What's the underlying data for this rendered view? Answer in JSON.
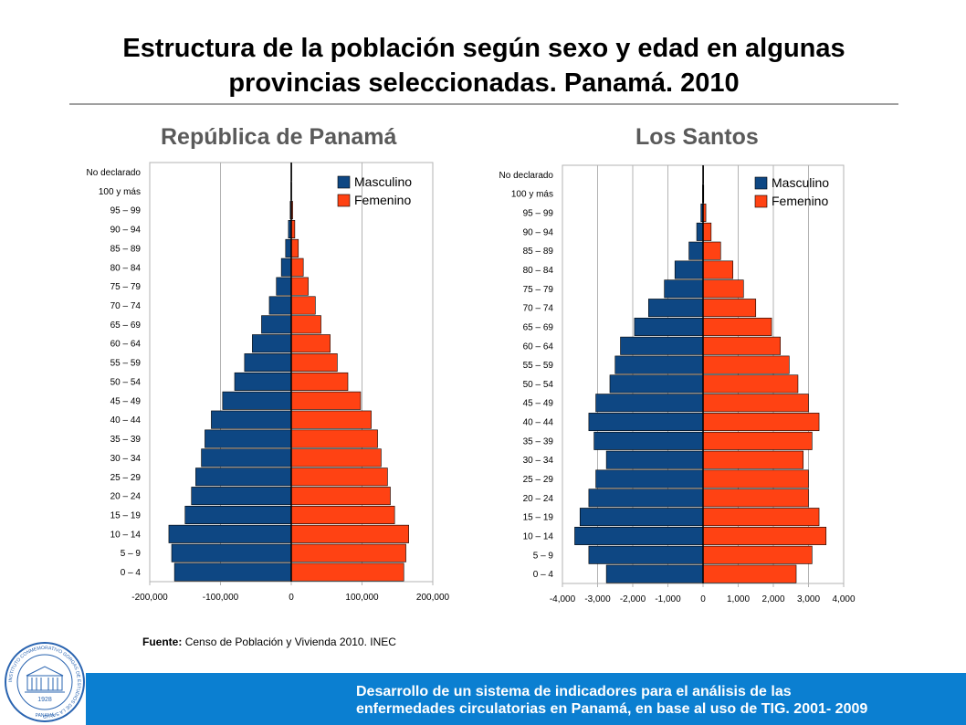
{
  "slide": {
    "title_line1": "Estructura de la población según sexo y edad en algunas",
    "title_line2": "provincias seleccionadas. Panamá. 2010",
    "source_label": "Fuente:",
    "source_text": "Censo de Población y Vivienda  2010. INEC",
    "footer_line1": "Desarrollo de un sistema de indicadores para el análisis de las",
    "footer_line2": "enfermedades circulatorias en Panamá, en base al uso de TIG. 2001- 2009",
    "logo_year": "1928",
    "logo_place": "PANAMÁ",
    "logo_ring_text": "INSTITUTO CONMEMORATIVO GORGAS DE ESTUDIOS DE LA SALUD"
  },
  "colors": {
    "male": "#0e4783",
    "female": "#ff4213",
    "footer": "#0b7fd1",
    "grid": "#b3b3b3"
  },
  "chart_data": [
    {
      "type": "bar",
      "orientation": "horizontal-population-pyramid",
      "title": "República de Panamá",
      "categories": [
        "0 – 4",
        "5 – 9",
        "10 – 14",
        "15 – 19",
        "20 – 24",
        "25 – 29",
        "30 – 34",
        "35 – 39",
        "40 – 44",
        "45 – 49",
        "50 – 54",
        "55 – 59",
        "60 – 64",
        "65 – 69",
        "70 – 74",
        "75 – 79",
        "80 – 84",
        "85 – 89",
        "90 – 94",
        "95 – 99",
        "100 y más",
        "No declarado"
      ],
      "series": [
        {
          "name": "Masculino",
          "values": [
            -165000,
            -169000,
            -173000,
            -150000,
            -141000,
            -135000,
            -127000,
            -122000,
            -113000,
            -97000,
            -80000,
            -66000,
            -55000,
            -42000,
            -31000,
            -21000,
            -14000,
            -8000,
            -4000,
            -1500,
            -500,
            -300
          ]
        },
        {
          "name": "Femenino",
          "values": [
            159000,
            162000,
            166000,
            146000,
            140000,
            136000,
            127000,
            122000,
            113000,
            98000,
            80000,
            65000,
            55000,
            42000,
            34000,
            24000,
            17000,
            10000,
            5000,
            2000,
            600,
            300
          ]
        }
      ],
      "xlim": [
        -200000,
        200000
      ],
      "xticks": [
        -200000,
        -100000,
        0,
        100000,
        200000
      ],
      "xtick_labels": [
        "-200,000",
        "-100,000",
        "0",
        "100,000",
        "200,000"
      ],
      "legend": "top-right",
      "grid": true
    },
    {
      "type": "bar",
      "orientation": "horizontal-population-pyramid",
      "title": "Los Santos",
      "categories": [
        "0 – 4",
        "5 – 9",
        "10 – 14",
        "15 – 19",
        "20 – 24",
        "25 – 29",
        "30 – 34",
        "35 – 39",
        "40 – 44",
        "45 – 49",
        "50 – 54",
        "55 – 59",
        "60 – 64",
        "65 – 69",
        "70 – 74",
        "75 – 79",
        "80 – 84",
        "85 – 89",
        "90 – 94",
        "95 – 99",
        "100 y más",
        "No declarado"
      ],
      "series": [
        {
          "name": "Masculino",
          "values": [
            -2750,
            -3250,
            -3650,
            -3500,
            -3250,
            -3050,
            -2750,
            -3100,
            -3250,
            -3050,
            -2650,
            -2500,
            -2350,
            -1950,
            -1550,
            -1100,
            -800,
            -400,
            -180,
            -60,
            -15,
            -5
          ]
        },
        {
          "name": "Femenino",
          "values": [
            2650,
            3100,
            3500,
            3300,
            3000,
            3000,
            2850,
            3100,
            3300,
            3000,
            2700,
            2450,
            2200,
            1950,
            1500,
            1150,
            850,
            500,
            230,
            80,
            20,
            5
          ]
        }
      ],
      "xlim": [
        -4000,
        4000
      ],
      "xticks": [
        -4000,
        -3000,
        -2000,
        -1000,
        0,
        1000,
        2000,
        3000,
        4000
      ],
      "xtick_labels": [
        "-4,000",
        "-3,000",
        "-2,000",
        "-1,000",
        "0",
        "1,000",
        "2,000",
        "3,000",
        "4,000"
      ],
      "legend": "top-right",
      "grid": true
    }
  ]
}
